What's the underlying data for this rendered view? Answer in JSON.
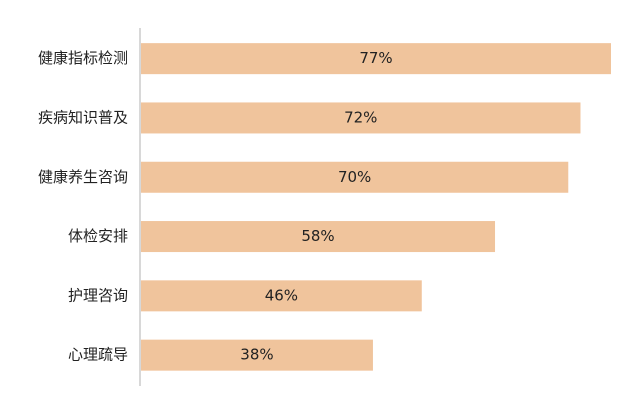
{
  "chart_data": {
    "type": "bar",
    "orientation": "horizontal",
    "categories": [
      "健康指标检测",
      "疾病知识普及",
      "健康养生咨询",
      "体检安排",
      "护理咨询",
      "心理疏导"
    ],
    "values": [
      77,
      72,
      70,
      58,
      46,
      38
    ],
    "value_labels": [
      "77%",
      "72%",
      "70%",
      "58%",
      "46%",
      "38%"
    ],
    "color": "#f0c49c"
  }
}
